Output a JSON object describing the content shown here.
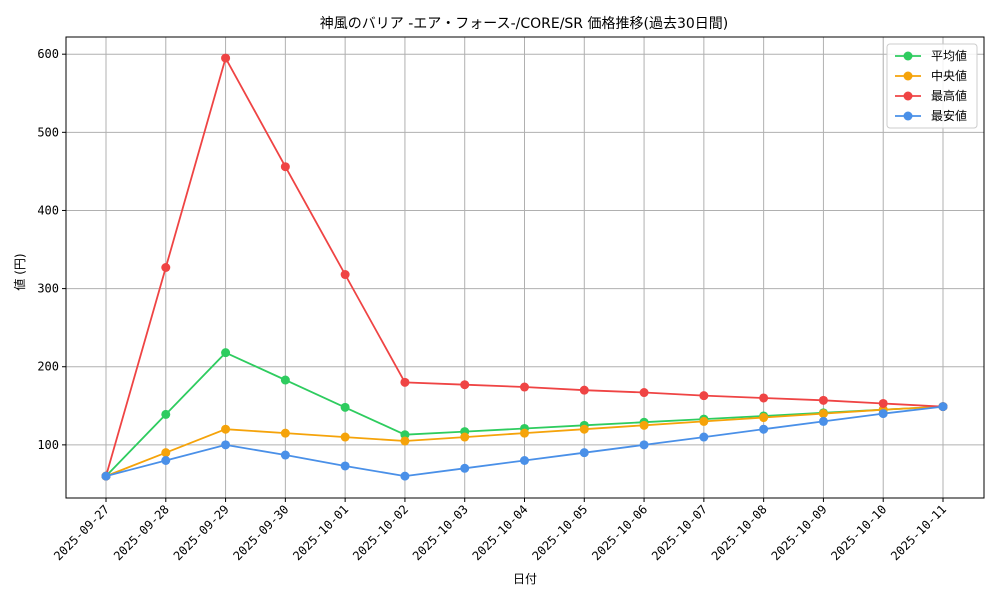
{
  "chart_data": {
    "type": "line",
    "title": "神風のバリア -エア・フォース-/CORE/SR 価格推移(過去30日間)",
    "xlabel": "日付",
    "ylabel": "値 (円)",
    "categories": [
      "2025-09-27",
      "2025-09-28",
      "2025-09-29",
      "2025-09-30",
      "2025-10-01",
      "2025-10-02",
      "2025-10-03",
      "2025-10-04",
      "2025-10-05",
      "2025-10-06",
      "2025-10-07",
      "2025-10-08",
      "2025-10-09",
      "2025-10-10",
      "2025-10-11"
    ],
    "ylim": [
      32,
      622
    ],
    "yticks": [
      100,
      200,
      300,
      400,
      500,
      600
    ],
    "grid": true,
    "legend_position": "top-right",
    "series": [
      {
        "name": "平均値",
        "color": "#2ecc5f",
        "values": [
          60,
          139,
          218,
          183,
          148,
          113,
          117,
          121,
          125,
          129,
          133,
          137,
          141,
          145,
          149
        ]
      },
      {
        "name": "中央値",
        "color": "#f5a30a",
        "values": [
          60,
          90,
          120,
          115,
          110,
          105,
          110,
          115,
          120,
          125,
          130,
          135,
          140,
          145,
          149
        ]
      },
      {
        "name": "最高値",
        "color": "#ef4444",
        "values": [
          60,
          327,
          595,
          456,
          318,
          180,
          177,
          174,
          170,
          167,
          163,
          160,
          157,
          153,
          149
        ]
      },
      {
        "name": "最安値",
        "color": "#4a90e8",
        "values": [
          60,
          80,
          100,
          87,
          73,
          60,
          70,
          80,
          90,
          100,
          110,
          120,
          130,
          140,
          149
        ]
      }
    ]
  }
}
